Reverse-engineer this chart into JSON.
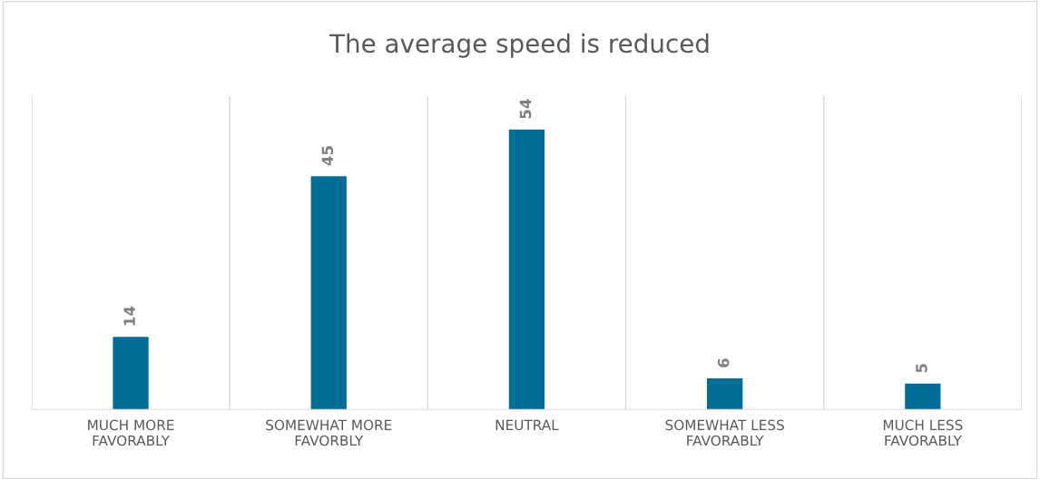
{
  "chart_data": {
    "type": "bar",
    "title": "The average speed is reduced",
    "categories": [
      "MUCH MORE\nFAVORABLY",
      "SOMEWHAT MORE\nFAVORBLY",
      "NEUTRAL",
      "SOMEWHAT LESS\nFAVORABLY",
      "MUCH LESS\nFAVORABLY"
    ],
    "values": [
      14,
      45,
      54,
      6,
      5
    ],
    "color": "#006e96",
    "data_labels": true,
    "grid": "x"
  }
}
